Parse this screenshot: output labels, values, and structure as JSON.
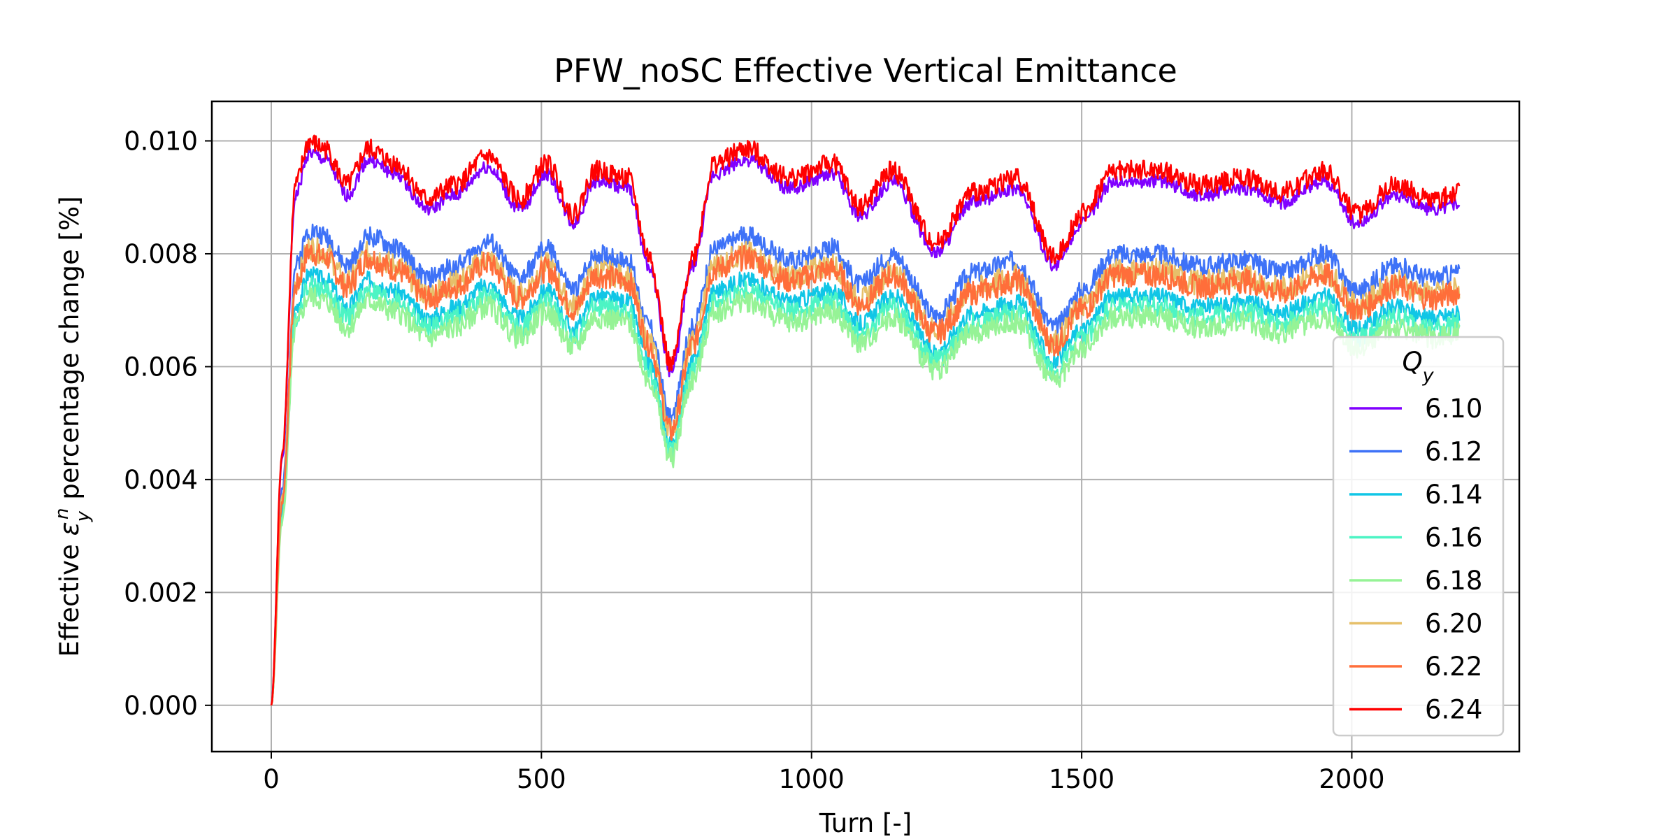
{
  "chart_data": {
    "type": "line",
    "title": "PFW_noSC Effective Vertical Emittance",
    "xlabel": "Turn [-]",
    "ylabel_prefix": "Effective ",
    "ylabel_symbol": "ε",
    "ylabel_sub": "y",
    "ylabel_sup": "n",
    "ylabel_suffix": " percentage change [%]",
    "xlim": [
      -110,
      2310
    ],
    "ylim": [
      -0.00082,
      0.0107
    ],
    "xticks": [
      0,
      500,
      1000,
      1500,
      2000
    ],
    "xtick_labels": [
      "0",
      "500",
      "1000",
      "1500",
      "2000"
    ],
    "yticks": [
      0.0,
      0.002,
      0.004,
      0.006,
      0.008,
      0.01
    ],
    "ytick_labels": [
      "0.000",
      "0.002",
      "0.004",
      "0.006",
      "0.008",
      "0.010"
    ],
    "grid": true,
    "legend": {
      "title_symbol": "Q",
      "title_sub": "y",
      "position": "lower-right"
    },
    "base_profile": [
      [
        0,
        0.0
      ],
      [
        20,
        0.0035
      ],
      [
        45,
        0.0072
      ],
      [
        70,
        0.0078
      ],
      [
        100,
        0.0077
      ],
      [
        140,
        0.0072
      ],
      [
        180,
        0.0077
      ],
      [
        230,
        0.0075
      ],
      [
        290,
        0.007
      ],
      [
        340,
        0.0072
      ],
      [
        400,
        0.0076
      ],
      [
        460,
        0.007
      ],
      [
        510,
        0.0075
      ],
      [
        560,
        0.0068
      ],
      [
        600,
        0.0074
      ],
      [
        660,
        0.0073
      ],
      [
        700,
        0.0062
      ],
      [
        740,
        0.0047
      ],
      [
        780,
        0.0062
      ],
      [
        820,
        0.0075
      ],
      [
        880,
        0.0077
      ],
      [
        960,
        0.0073
      ],
      [
        1040,
        0.0075
      ],
      [
        1090,
        0.0069
      ],
      [
        1150,
        0.0074
      ],
      [
        1230,
        0.0064
      ],
      [
        1300,
        0.0071
      ],
      [
        1380,
        0.0073
      ],
      [
        1450,
        0.0062
      ],
      [
        1500,
        0.0068
      ],
      [
        1560,
        0.0074
      ],
      [
        1640,
        0.0074
      ],
      [
        1720,
        0.0072
      ],
      [
        1800,
        0.0073
      ],
      [
        1870,
        0.0071
      ],
      [
        1950,
        0.0074
      ],
      [
        2010,
        0.0068
      ],
      [
        2080,
        0.0072
      ],
      [
        2150,
        0.007
      ],
      [
        2200,
        0.0071
      ]
    ],
    "series": [
      {
        "name": "6.10",
        "color": "#8000ff",
        "scale": 1.255,
        "noise": 0.00012
      },
      {
        "name": "6.12",
        "color": "#3e72f7",
        "scale": 1.08,
        "noise": 0.00018
      },
      {
        "name": "6.14",
        "color": "#10c6e6",
        "scale": 0.98,
        "noise": 0.00015
      },
      {
        "name": "6.16",
        "color": "#4df4c4",
        "scale": 0.955,
        "noise": 0.00018
      },
      {
        "name": "6.18",
        "color": "#96f396",
        "scale": 0.93,
        "noise": 0.0002
      },
      {
        "name": "6.20",
        "color": "#e6c06a",
        "scale": 1.04,
        "noise": 0.00022
      },
      {
        "name": "6.22",
        "color": "#ff6e3a",
        "scale": 1.03,
        "noise": 0.00022
      },
      {
        "name": "6.24",
        "color": "#ff0000",
        "scale": 1.28,
        "noise": 0.00018
      }
    ]
  }
}
